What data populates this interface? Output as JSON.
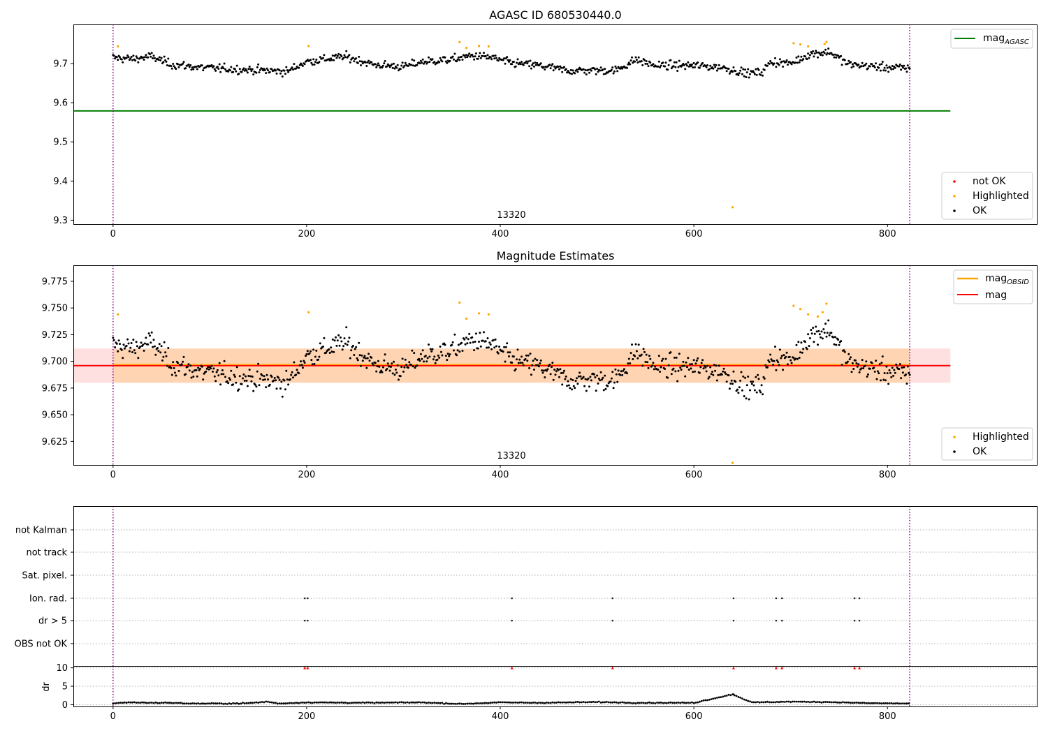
{
  "chart_data": [
    {
      "type": "scatter",
      "title": "AGASC ID 680530440.0",
      "xlim": [
        -41,
        955
      ],
      "ylim": [
        9.29,
        9.8
      ],
      "xticks": [
        0,
        200,
        400,
        600,
        800
      ],
      "yticks": [
        9.3,
        9.4,
        9.5,
        9.6,
        9.7
      ],
      "vlines_dotted": [
        0,
        823
      ],
      "obsid_label": "13320",
      "obsid_label_x": 412,
      "line_legend": [
        {
          "name": "mag",
          "sub": "AGASC",
          "color": "#008000"
        }
      ],
      "marker_legend": [
        {
          "name": "not OK",
          "color": "#ff0000"
        },
        {
          "name": "Highlighted",
          "color": "#ffa500"
        },
        {
          "name": "OK",
          "color": "#000000"
        }
      ],
      "mag_agasc": {
        "value": 9.579,
        "x_range": [
          -41,
          865
        ]
      },
      "ok_trend": [
        [
          0,
          9.715
        ],
        [
          20,
          9.712
        ],
        [
          40,
          9.718
        ],
        [
          60,
          9.698
        ],
        [
          90,
          9.69
        ],
        [
          130,
          9.685
        ],
        [
          180,
          9.68
        ],
        [
          200,
          9.705
        ],
        [
          240,
          9.718
        ],
        [
          270,
          9.697
        ],
        [
          300,
          9.692
        ],
        [
          320,
          9.705
        ],
        [
          350,
          9.71
        ],
        [
          370,
          9.72
        ],
        [
          390,
          9.716
        ],
        [
          410,
          9.702
        ],
        [
          440,
          9.695
        ],
        [
          470,
          9.682
        ],
        [
          520,
          9.683
        ],
        [
          540,
          9.71
        ],
        [
          560,
          9.695
        ],
        [
          600,
          9.695
        ],
        [
          630,
          9.69
        ],
        [
          655,
          9.675
        ],
        [
          670,
          9.678
        ],
        [
          680,
          9.705
        ],
        [
          700,
          9.7
        ],
        [
          720,
          9.725
        ],
        [
          740,
          9.73
        ],
        [
          760,
          9.698
        ],
        [
          800,
          9.69
        ],
        [
          823,
          9.688
        ]
      ],
      "highlighted": [
        [
          5,
          9.744
        ],
        [
          202,
          9.745
        ],
        [
          358,
          9.755
        ],
        [
          365,
          9.74
        ],
        [
          378,
          9.745
        ],
        [
          388,
          9.744
        ],
        [
          640,
          9.333
        ],
        [
          703,
          9.752
        ],
        [
          710,
          9.749
        ],
        [
          718,
          9.744
        ],
        [
          735,
          9.75
        ],
        [
          737,
          9.755
        ]
      ]
    },
    {
      "type": "scatter",
      "title": "Magnitude Estimates",
      "xlim": [
        -41,
        955
      ],
      "ylim": [
        9.603,
        9.79
      ],
      "xticks": [
        0,
        200,
        400,
        600,
        800
      ],
      "yticks": [
        9.625,
        9.65,
        9.675,
        9.7,
        9.725,
        9.75,
        9.775
      ],
      "ytick_labels": [
        "9.625",
        "9.650",
        "9.675",
        "9.700",
        "9.725",
        "9.750",
        "9.775"
      ],
      "vlines_dotted": [
        0,
        823
      ],
      "obsid_label": "13320",
      "obsid_label_x": 412,
      "line_legend": [
        {
          "name": "mag",
          "sub": "OBSID",
          "color": "#ffa500"
        },
        {
          "name": "mag",
          "sub": "",
          "color": "#ff0000"
        }
      ],
      "marker_legend": [
        {
          "name": "Highlighted",
          "color": "#ffa500"
        },
        {
          "name": "OK",
          "color": "#000000"
        }
      ],
      "mag_line": {
        "value": 9.696,
        "x_range": [
          -41,
          865
        ]
      },
      "mag_obsid_line": {
        "value": 9.697,
        "x_range": [
          0,
          823
        ]
      },
      "band_outer": {
        "low": 9.68,
        "high": 9.712,
        "x_range": [
          -41,
          865
        ]
      },
      "band_inner": {
        "low": 9.68,
        "high": 9.712,
        "x_range": [
          0,
          823
        ]
      },
      "highlighted": [
        [
          5,
          9.744
        ],
        [
          202,
          9.746
        ],
        [
          358,
          9.755
        ],
        [
          365,
          9.74
        ],
        [
          378,
          9.745
        ],
        [
          388,
          9.744
        ],
        [
          640,
          9.604
        ],
        [
          703,
          9.752
        ],
        [
          710,
          9.749
        ],
        [
          718,
          9.744
        ],
        [
          728,
          9.742
        ],
        [
          733,
          9.746
        ],
        [
          737,
          9.754
        ]
      ]
    },
    {
      "type": "scatter",
      "title": "",
      "xlim": [
        -41,
        955
      ],
      "xticks": [
        0,
        200,
        400,
        600,
        800
      ],
      "vlines_dotted": [
        0,
        823
      ],
      "flag_rows": [
        "not Kalman",
        "not track",
        "Sat. pixel.",
        "Ion. rad.",
        "dr > 5",
        "OBS not OK"
      ],
      "flag_points": {
        "Ion. rad.": [
          198,
          201,
          412,
          516,
          641,
          685,
          691,
          766,
          771
        ],
        "dr > 5": [
          198,
          201,
          412,
          516,
          641,
          685,
          691,
          766,
          771
        ]
      }
    },
    {
      "type": "scatter",
      "title": "",
      "ylabel": "dr",
      "xlim": [
        -41,
        955
      ],
      "ylim": [
        -0.5,
        10.5
      ],
      "xticks": [
        0,
        200,
        400,
        600,
        800
      ],
      "yticks": [
        0,
        5,
        10
      ],
      "vlines_dotted": [
        0,
        823
      ],
      "dr_points": [
        [
          0,
          0.3
        ],
        [
          5,
          0.5
        ],
        [
          20,
          0.6
        ],
        [
          40,
          0.5
        ],
        [
          60,
          0.5
        ],
        [
          80,
          0.3
        ],
        [
          100,
          0.3
        ],
        [
          120,
          0.3
        ],
        [
          140,
          0.4
        ],
        [
          160,
          0.8
        ],
        [
          170,
          0.3
        ],
        [
          200,
          0.6
        ],
        [
          260,
          0.5
        ],
        [
          320,
          0.6
        ],
        [
          360,
          0.2
        ],
        [
          400,
          0.6
        ],
        [
          440,
          0.5
        ],
        [
          500,
          0.7
        ],
        [
          540,
          0.5
        ],
        [
          600,
          0.5
        ],
        [
          640,
          2.8
        ],
        [
          660,
          0.6
        ],
        [
          700,
          0.8
        ],
        [
          740,
          0.7
        ],
        [
          780,
          0.4
        ],
        [
          823,
          0.3
        ]
      ],
      "capped_points": [
        198,
        201,
        412,
        516,
        641,
        685,
        691,
        766,
        771
      ],
      "capped_value": 10
    }
  ]
}
